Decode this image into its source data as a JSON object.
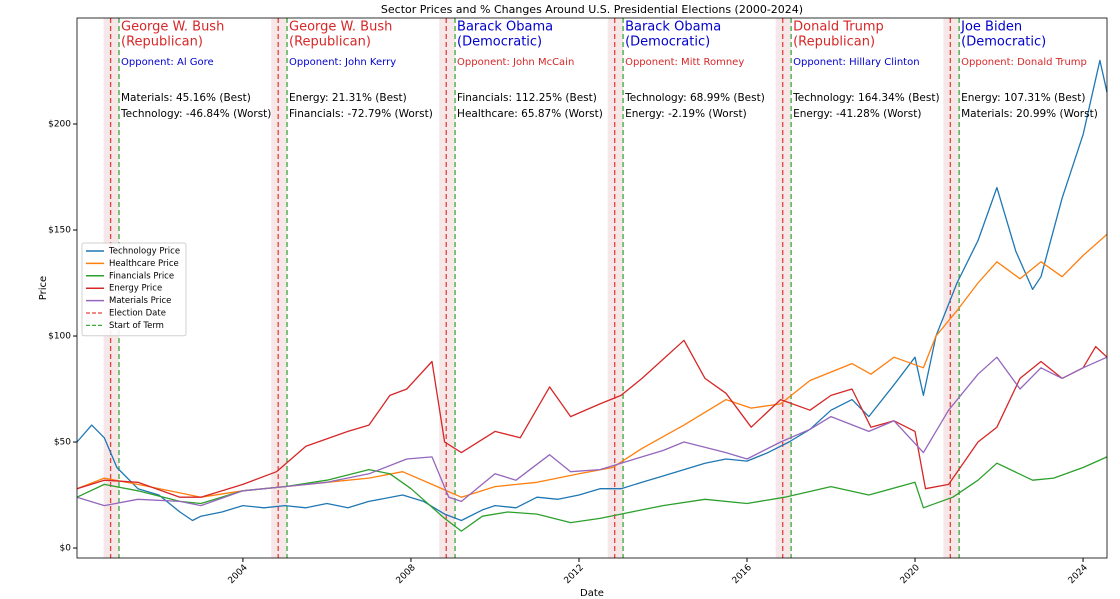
{
  "chart_data": {
    "type": "line",
    "title": "Sector Prices and % Changes Around U.S. Presidential Elections (2000-2024)",
    "xlabel": "Date",
    "ylabel": "Price",
    "xlim": [
      2000.05,
      2024.57
    ],
    "xticks": [
      2004,
      2008,
      2012,
      2016,
      2020,
      2024
    ],
    "ylim": [
      -4.7,
      250
    ],
    "yticks": [
      {
        "value": 0,
        "label": "$0"
      },
      {
        "value": 50,
        "label": "$50"
      },
      {
        "value": 100,
        "label": "$100"
      },
      {
        "value": 150,
        "label": "$150"
      },
      {
        "value": 200,
        "label": "$200"
      }
    ],
    "legend": "center left",
    "series": [
      {
        "name": "Technology Price",
        "color": "#1f77b4",
        "x": [
          2000.05,
          2000.4,
          2000.7,
          2001.0,
          2001.5,
          2002.0,
          2002.5,
          2002.8,
          2003.0,
          2003.5,
          2004.0,
          2004.5,
          2005.0,
          2005.5,
          2006.0,
          2006.5,
          2007.0,
          2007.8,
          2008.3,
          2008.8,
          2009.2,
          2009.7,
          2010.0,
          2010.5,
          2011.0,
          2011.5,
          2012.0,
          2012.5,
          2013.0,
          2013.5,
          2014.0,
          2014.5,
          2015.0,
          2015.5,
          2016.0,
          2016.5,
          2017.0,
          2017.5,
          2018.0,
          2018.5,
          2018.9,
          2019.5,
          2020.0,
          2020.2,
          2020.5,
          2021.0,
          2021.5,
          2021.95,
          2022.4,
          2022.8,
          2023.0,
          2023.5,
          2024.0,
          2024.4,
          2024.57
        ],
        "values": [
          50,
          58,
          52,
          38,
          28,
          25,
          17,
          13,
          15,
          17,
          20,
          19,
          20,
          19,
          21,
          19,
          22,
          25,
          22,
          16,
          13,
          18,
          20,
          19,
          24,
          23,
          25,
          28,
          28,
          31,
          34,
          37,
          40,
          42,
          41,
          45,
          50,
          56,
          65,
          70,
          62,
          77,
          90,
          72,
          100,
          125,
          145,
          170,
          140,
          122,
          128,
          165,
          195,
          230,
          215
        ]
      },
      {
        "name": "Healthcare Price",
        "color": "#ff7f0e",
        "x": [
          2000.05,
          2000.7,
          2001.5,
          2002.5,
          2003.0,
          2004.0,
          2004.5,
          2005.0,
          2006.0,
          2007.0,
          2007.8,
          2008.5,
          2009.2,
          2010.0,
          2011.0,
          2012.0,
          2012.8,
          2013.5,
          2014.5,
          2015.5,
          2016.1,
          2016.8,
          2017.5,
          2018.5,
          2018.95,
          2019.5,
          2020.2,
          2020.5,
          2021.0,
          2021.5,
          2021.95,
          2022.5,
          2023.0,
          2023.5,
          2024.0,
          2024.57
        ],
        "values": [
          28,
          33,
          30,
          26,
          24,
          27,
          28,
          29,
          31,
          33,
          36,
          30,
          24,
          29,
          31,
          35,
          38,
          47,
          58,
          70,
          66,
          68,
          79,
          87,
          82,
          90,
          85,
          100,
          112,
          125,
          135,
          127,
          135,
          128,
          138,
          148
        ]
      },
      {
        "name": "Financials Price",
        "color": "#2ca02c",
        "x": [
          2000.05,
          2000.7,
          2001.5,
          2002.5,
          2003.0,
          2004.0,
          2005.0,
          2006.0,
          2007.0,
          2007.5,
          2008.0,
          2008.8,
          2009.2,
          2009.7,
          2010.3,
          2011.0,
          2011.8,
          2012.5,
          2013.0,
          2014.0,
          2015.0,
          2016.0,
          2016.9,
          2018.0,
          2018.9,
          2020.0,
          2020.2,
          2020.9,
          2021.5,
          2021.95,
          2022.8,
          2023.3,
          2024.0,
          2024.57
        ],
        "values": [
          24,
          30,
          27,
          22,
          21,
          27,
          29,
          32,
          37,
          35,
          28,
          14,
          8,
          15,
          17,
          16,
          12,
          14,
          16,
          20,
          23,
          21,
          24,
          29,
          25,
          31,
          19,
          24,
          32,
          40,
          32,
          33,
          38,
          43
        ]
      },
      {
        "name": "Energy Price",
        "color": "#d62728",
        "x": [
          2000.05,
          2000.7,
          2001.5,
          2002.5,
          2003.0,
          2004.0,
          2004.8,
          2005.5,
          2006.5,
          2007.0,
          2007.5,
          2007.9,
          2008.5,
          2008.8,
          2009.2,
          2010.0,
          2010.6,
          2011.3,
          2011.8,
          2012.5,
          2013.0,
          2013.5,
          2014.5,
          2015.0,
          2015.5,
          2016.1,
          2016.8,
          2017.5,
          2018.0,
          2018.5,
          2018.95,
          2019.5,
          2020.0,
          2020.25,
          2020.8,
          2021.5,
          2021.95,
          2022.5,
          2023.0,
          2023.5,
          2024.0,
          2024.3,
          2024.57
        ],
        "values": [
          28,
          32,
          31,
          24,
          24,
          30,
          36,
          48,
          55,
          58,
          72,
          75,
          88,
          50,
          45,
          55,
          52,
          76,
          62,
          68,
          72,
          80,
          98,
          80,
          73,
          57,
          70,
          65,
          72,
          75,
          57,
          60,
          55,
          28,
          30,
          50,
          57,
          80,
          88,
          80,
          85,
          95,
          90
        ]
      },
      {
        "name": "Materials Price",
        "color": "#9467bd",
        "x": [
          2000.05,
          2000.7,
          2001.5,
          2002.5,
          2003.0,
          2004.0,
          2005.0,
          2006.0,
          2007.0,
          2007.9,
          2008.5,
          2008.9,
          2009.2,
          2010.0,
          2010.5,
          2011.3,
          2011.8,
          2012.5,
          2013.0,
          2014.0,
          2014.5,
          2015.5,
          2016.0,
          2016.8,
          2017.5,
          2018.0,
          2018.9,
          2019.5,
          2020.2,
          2020.8,
          2021.5,
          2021.95,
          2022.5,
          2023.0,
          2023.5,
          2024.0,
          2024.57
        ],
        "values": [
          24,
          20,
          23,
          22,
          20,
          27,
          29,
          31,
          35,
          42,
          43,
          24,
          22,
          35,
          32,
          44,
          36,
          37,
          40,
          46,
          50,
          45,
          42,
          50,
          56,
          62,
          55,
          60,
          45,
          65,
          82,
          90,
          75,
          85,
          80,
          85,
          90
        ]
      }
    ],
    "reference_lines": [
      {
        "name": "Election Date",
        "color": "#e8403a"
      },
      {
        "name": "Start of Term",
        "color": "#3aa83a"
      }
    ],
    "elections": [
      {
        "election": 2000.85,
        "term_start": 2001.05,
        "winner": "George W. Bush",
        "party": "(Republican)",
        "color": "#d62728",
        "opponent": "Opponent: Al Gore",
        "opponent_color": "#0000cd",
        "best": "Materials: 45.16% (Best)",
        "worst": "Technology: -46.84% (Worst)"
      },
      {
        "election": 2004.84,
        "term_start": 2005.05,
        "winner": "George W. Bush",
        "party": "(Republican)",
        "color": "#d62728",
        "opponent": "Opponent: John Kerry",
        "opponent_color": "#0000cd",
        "best": "Energy: 21.31% (Best)",
        "worst": "Financials: -72.79% (Worst)"
      },
      {
        "election": 2008.84,
        "term_start": 2009.05,
        "winner": "Barack Obama",
        "party": "(Democratic)",
        "color": "#0000cd",
        "opponent": "Opponent: John McCain",
        "opponent_color": "#d62728",
        "best": "Financials: 112.25% (Best)",
        "worst": "Healthcare: 65.87% (Worst)"
      },
      {
        "election": 2012.85,
        "term_start": 2013.05,
        "winner": "Barack Obama",
        "party": "(Democratic)",
        "color": "#0000cd",
        "opponent": "Opponent: Mitt Romney",
        "opponent_color": "#d62728",
        "best": "Technology: 68.99% (Best)",
        "worst": "Energy: -2.19% (Worst)"
      },
      {
        "election": 2016.85,
        "term_start": 2017.05,
        "winner": "Donald Trump",
        "party": "(Republican)",
        "color": "#d62728",
        "opponent": "Opponent: Hillary Clinton",
        "opponent_color": "#0000cd",
        "best": "Technology: 164.34% (Best)",
        "worst": "Energy: -41.28% (Worst)"
      },
      {
        "election": 2020.84,
        "term_start": 2021.05,
        "winner": "Joe Biden",
        "party": "(Democratic)",
        "color": "#0000cd",
        "opponent": "Opponent: Donald Trump",
        "opponent_color": "#d62728",
        "best": "Energy: 107.31% (Best)",
        "worst": "Materials: 20.99% (Worst)"
      }
    ]
  }
}
